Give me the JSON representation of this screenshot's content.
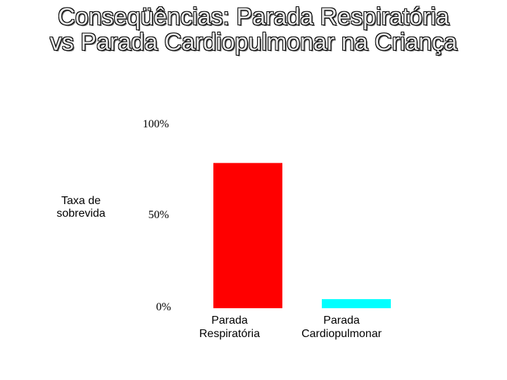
{
  "chart_data": {
    "type": "bar",
    "title_lines": [
      "Conseqüências:  Parada Respiratória",
      "vs Parada Cardiopulmonar na Criança"
    ],
    "ylabel": "Taxa de sobrevida",
    "ylim": [
      0,
      100
    ],
    "yticks": [
      "100%",
      "50%",
      "0%"
    ],
    "categories": [
      "Parada Respiratória",
      "Parada Cardiopulmonar"
    ],
    "category_lines": [
      [
        "Parada",
        "Respiratória"
      ],
      [
        "Parada",
        "Cardiopulmonar"
      ]
    ],
    "values": [
      80,
      5
    ],
    "colors": [
      "#ff0000",
      "#00ffff"
    ]
  }
}
